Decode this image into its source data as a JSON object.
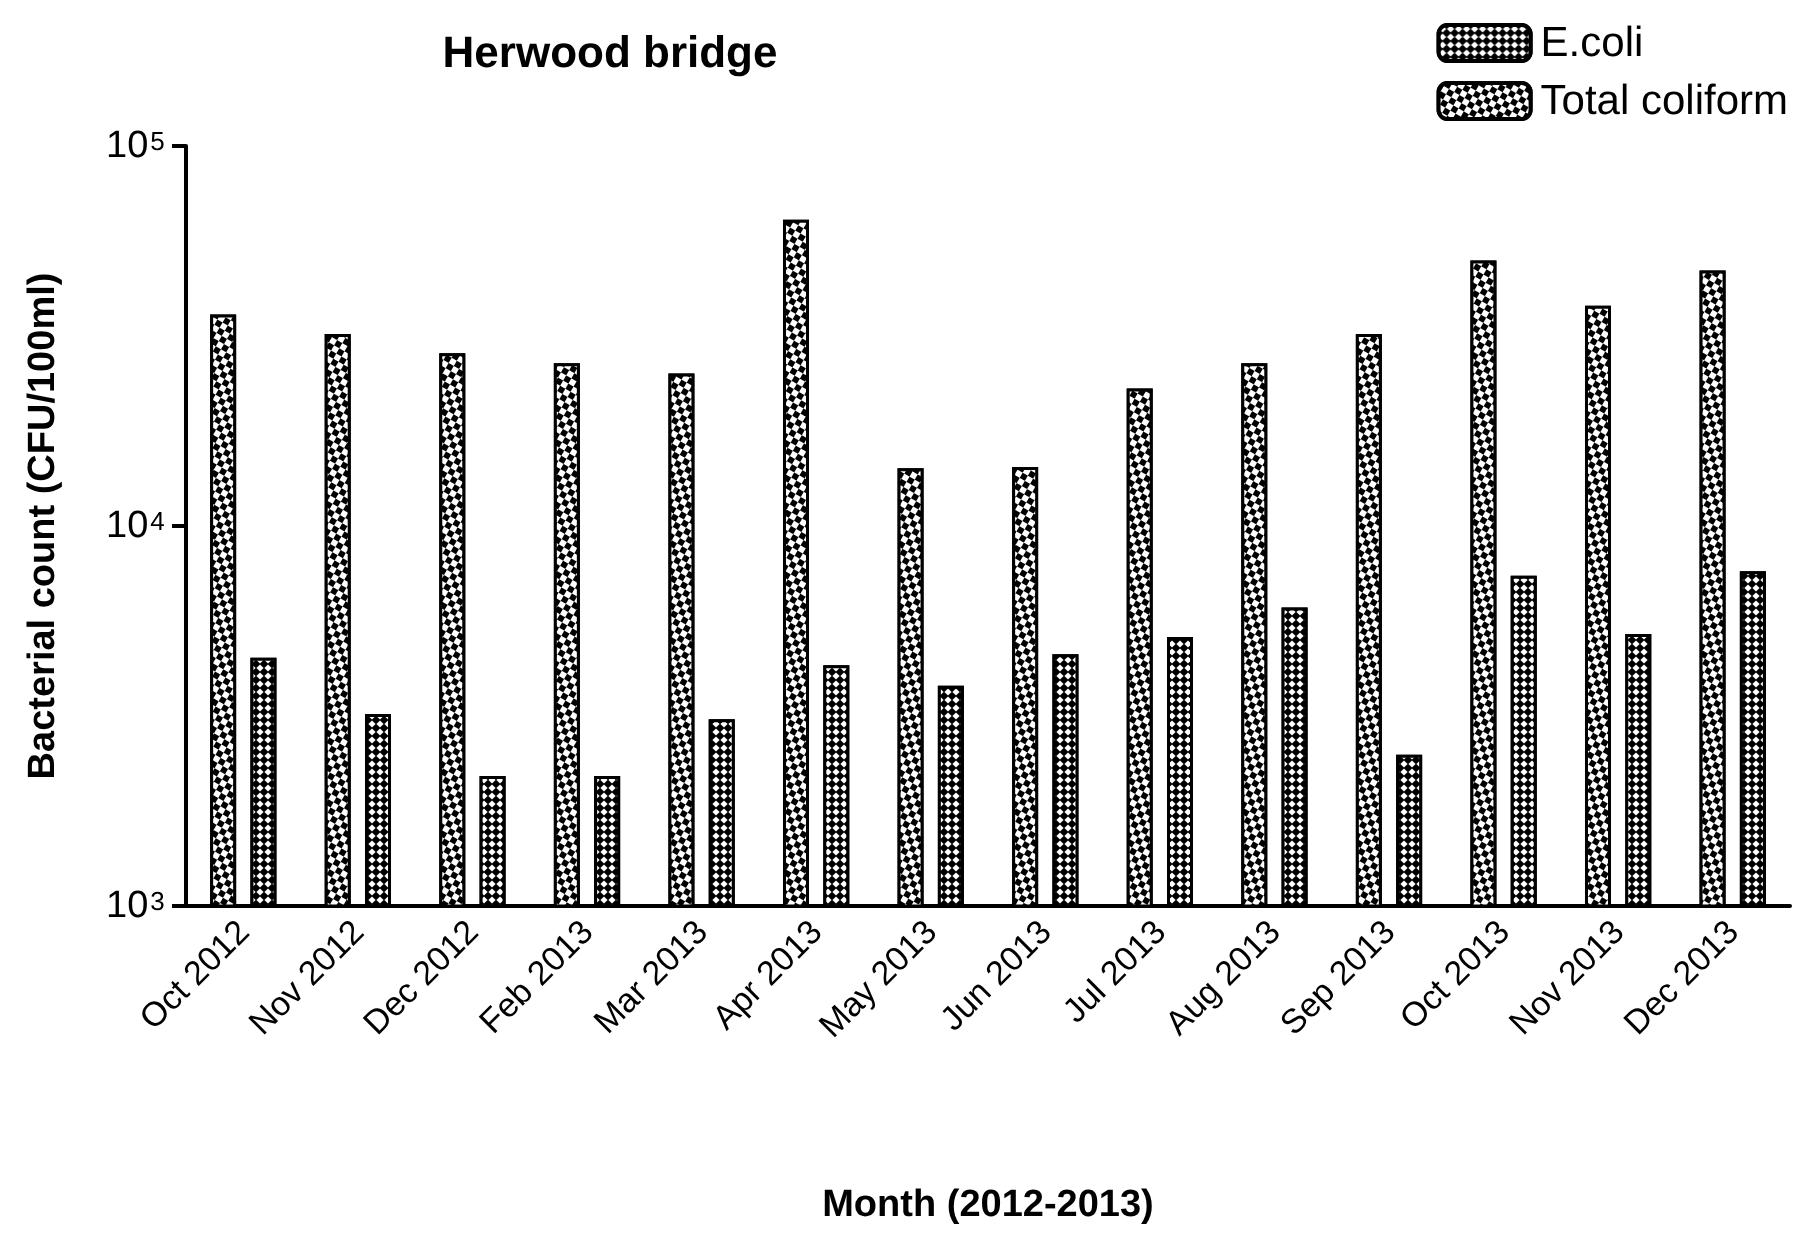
{
  "chart_data": {
    "type": "bar",
    "title": "Herwood bridge",
    "xlabel": "Month (2012-2013)",
    "ylabel": "Bacterial count (CFU/100ml)",
    "categories": [
      "Oct 2012",
      "Nov 2012",
      "Dec 2012",
      "Feb 2013",
      "Mar 2013",
      "Apr 2013",
      "May 2013",
      "Jun 2013",
      "Jul 2013",
      "Aug 2013",
      "Sep 2013",
      "Oct 2013",
      "Nov 2013",
      "Dec 2013"
    ],
    "series": [
      {
        "name": "Total coliform",
        "color": "#000000",
        "values": [
          36000,
          32000,
          28500,
          26800,
          25200,
          64000,
          14200,
          14300,
          23000,
          26800,
          32000,
          50000,
          38000,
          47000
        ]
      },
      {
        "name": "E.coli",
        "color": "#000000",
        "values": [
          4500,
          3200,
          2200,
          2200,
          3100,
          4300,
          3800,
          4600,
          5100,
          6100,
          2500,
          7400,
          5200,
          7600
        ]
      }
    ],
    "log": "y",
    "ylim": [
      1000,
      100000
    ],
    "yticks": [
      {
        "value": 1000,
        "label": "10$^{3}$"
      },
      {
        "value": 10000,
        "label": "10$^{4}$"
      },
      {
        "value": 100000,
        "label": "10$^{5}$"
      }
    ],
    "grid": false,
    "legend": "top right"
  }
}
